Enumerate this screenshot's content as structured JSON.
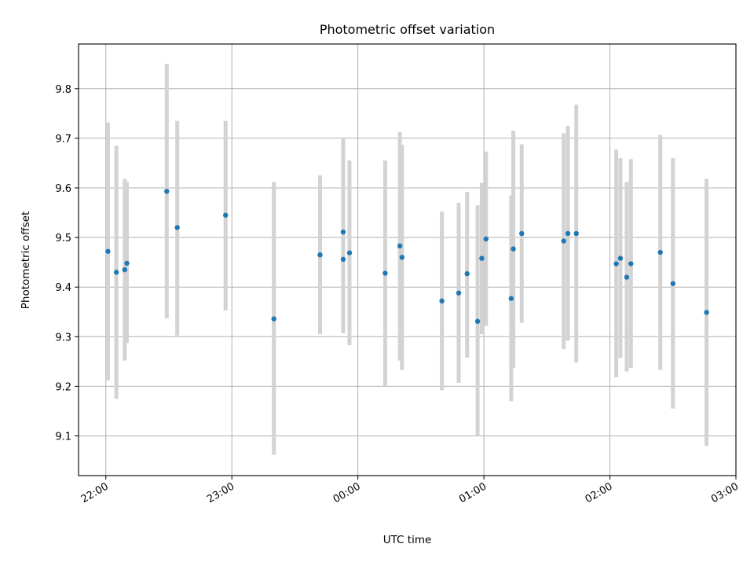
{
  "chart_data": {
    "type": "scatter",
    "title": "Photometric offset variation",
    "xlabel": "UTC time",
    "ylabel": "Photometric offset",
    "x_axis_type": "time",
    "xlim": [
      "21:47",
      "03:00"
    ],
    "ylim": [
      9.02,
      9.89
    ],
    "x_ticks": [
      "22:00",
      "23:00",
      "00:00",
      "01:00",
      "02:00",
      "03:00"
    ],
    "y_ticks": [
      9.1,
      9.2,
      9.3,
      9.4,
      9.5,
      9.6,
      9.7,
      9.8
    ],
    "grid": true,
    "point_color": "#1f77b4",
    "errorbar_color": "#d3d3d3",
    "points": [
      {
        "x": "22:01",
        "y": 9.472,
        "ylow": 9.212,
        "yhigh": 9.732
      },
      {
        "x": "22:05",
        "y": 9.43,
        "ylow": 9.175,
        "yhigh": 9.685
      },
      {
        "x": "22:09",
        "y": 9.435,
        "ylow": 9.252,
        "yhigh": 9.618
      },
      {
        "x": "22:10",
        "y": 9.448,
        "ylow": 9.287,
        "yhigh": 9.612
      },
      {
        "x": "22:29",
        "y": 9.593,
        "ylow": 9.337,
        "yhigh": 9.85
      },
      {
        "x": "22:34",
        "y": 9.52,
        "ylow": 9.302,
        "yhigh": 9.735
      },
      {
        "x": "22:57",
        "y": 9.545,
        "ylow": 9.353,
        "yhigh": 9.735
      },
      {
        "x": "23:20",
        "y": 9.336,
        "ylow": 9.062,
        "yhigh": 9.612
      },
      {
        "x": "23:42",
        "y": 9.465,
        "ylow": 9.305,
        "yhigh": 9.625
      },
      {
        "x": "23:53",
        "y": 9.511,
        "ylow": 9.323,
        "yhigh": 9.7
      },
      {
        "x": "23:53",
        "y": 9.456,
        "ylow": 9.307,
        "yhigh": 9.605
      },
      {
        "x": "23:56",
        "y": 9.469,
        "ylow": 9.283,
        "yhigh": 9.655
      },
      {
        "x": "00:13",
        "y": 9.428,
        "ylow": 9.2,
        "yhigh": 9.655
      },
      {
        "x": "00:20",
        "y": 9.483,
        "ylow": 9.252,
        "yhigh": 9.713
      },
      {
        "x": "00:21",
        "y": 9.46,
        "ylow": 9.233,
        "yhigh": 9.687
      },
      {
        "x": "00:40",
        "y": 9.372,
        "ylow": 9.192,
        "yhigh": 9.552
      },
      {
        "x": "00:48",
        "y": 9.388,
        "ylow": 9.207,
        "yhigh": 9.57
      },
      {
        "x": "00:52",
        "y": 9.427,
        "ylow": 9.258,
        "yhigh": 9.592
      },
      {
        "x": "00:57",
        "y": 9.331,
        "ylow": 9.1,
        "yhigh": 9.565
      },
      {
        "x": "00:59",
        "y": 9.458,
        "ylow": 9.305,
        "yhigh": 9.61
      },
      {
        "x": "01:01",
        "y": 9.497,
        "ylow": 9.322,
        "yhigh": 9.673
      },
      {
        "x": "01:13",
        "y": 9.377,
        "ylow": 9.17,
        "yhigh": 9.585
      },
      {
        "x": "01:14",
        "y": 9.477,
        "ylow": 9.237,
        "yhigh": 9.715
      },
      {
        "x": "01:18",
        "y": 9.508,
        "ylow": 9.328,
        "yhigh": 9.688
      },
      {
        "x": "01:38",
        "y": 9.493,
        "ylow": 9.275,
        "yhigh": 9.71
      },
      {
        "x": "01:40",
        "y": 9.508,
        "ylow": 9.292,
        "yhigh": 9.725
      },
      {
        "x": "01:44",
        "y": 9.508,
        "ylow": 9.248,
        "yhigh": 9.768
      },
      {
        "x": "02:03",
        "y": 9.447,
        "ylow": 9.218,
        "yhigh": 9.677
      },
      {
        "x": "02:05",
        "y": 9.458,
        "ylow": 9.257,
        "yhigh": 9.66
      },
      {
        "x": "02:08",
        "y": 9.42,
        "ylow": 9.23,
        "yhigh": 9.612
      },
      {
        "x": "02:10",
        "y": 9.447,
        "ylow": 9.237,
        "yhigh": 9.658
      },
      {
        "x": "02:24",
        "y": 9.47,
        "ylow": 9.233,
        "yhigh": 9.707
      },
      {
        "x": "02:30",
        "y": 9.407,
        "ylow": 9.155,
        "yhigh": 9.66
      },
      {
        "x": "02:46",
        "y": 9.349,
        "ylow": 9.08,
        "yhigh": 9.618
      }
    ]
  }
}
